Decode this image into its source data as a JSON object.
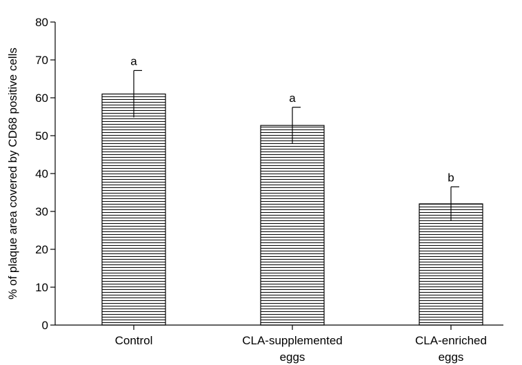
{
  "chart_data": {
    "type": "bar",
    "title": "",
    "xlabel": "",
    "ylabel": "% of plaque area covered by CD68 positive cells",
    "ylim": [
      0,
      80
    ],
    "yticks": [
      0,
      10,
      20,
      30,
      40,
      50,
      60,
      70,
      80
    ],
    "grid": false,
    "categories": [
      [
        "Control"
      ],
      [
        "CLA-supplemented",
        "eggs"
      ],
      [
        "CLA-enriched",
        "eggs"
      ]
    ],
    "values": [
      61,
      52.7,
      32
    ],
    "error_upper": [
      6.2,
      4.8,
      4.5
    ],
    "significance_letters": [
      "a",
      "a",
      "b"
    ],
    "bar_fill": "horizontal-hatch",
    "colors": {
      "bar_stroke": "#000000",
      "hatch": "#000000",
      "background": "#ffffff"
    }
  }
}
